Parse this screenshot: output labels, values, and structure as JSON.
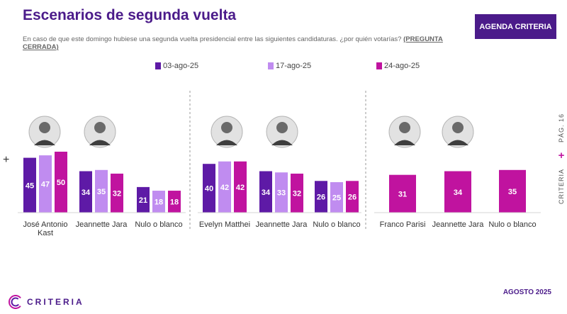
{
  "header": {
    "title": "Escenarios de segunda vuelta",
    "subtitle": "En caso de que este domingo hubiese una segunda vuelta presidencial entre las siguientes candidaturas. ¿por quién votarías?",
    "subtitle_note": "(PREGUNTA CERRADA)",
    "badge": "AGENDA CRITERIA"
  },
  "side": {
    "page": "PÁG. 16",
    "brand": "CRITERIA"
  },
  "footer": {
    "date": "AGOSTO 2025",
    "logo_text": "CRITERIA"
  },
  "colors": {
    "purple_dark": "#5e1aa6",
    "purple_light": "#c08cf0",
    "magenta": "#c0139f",
    "title": "#4b1b8a"
  },
  "chart_data": {
    "type": "bar",
    "legend": [
      "03-ago-25",
      "17-ago-25",
      "24-ago-25"
    ],
    "series_colors": [
      "#5e1aa6",
      "#c08cf0",
      "#c0139f"
    ],
    "ylim": [
      0,
      60
    ],
    "scenarios": [
      {
        "categories": [
          "José Antonio Kast",
          "Jeannette Jara",
          "Nulo o blanco"
        ],
        "series": [
          {
            "name": "03-ago-25",
            "values": [
              45,
              34,
              21
            ]
          },
          {
            "name": "17-ago-25",
            "values": [
              47,
              35,
              18
            ]
          },
          {
            "name": "24-ago-25",
            "values": [
              50,
              32,
              18
            ]
          }
        ]
      },
      {
        "categories": [
          "Evelyn Matthei",
          "Jeannette Jara",
          "Nulo o blanco"
        ],
        "series": [
          {
            "name": "03-ago-25",
            "values": [
              40,
              34,
              26
            ]
          },
          {
            "name": "17-ago-25",
            "values": [
              42,
              33,
              25
            ]
          },
          {
            "name": "24-ago-25",
            "values": [
              42,
              32,
              26
            ]
          }
        ]
      },
      {
        "categories": [
          "Franco Parisi",
          "Jeannette Jara",
          "Nulo o blanco"
        ],
        "series": [
          {
            "name": "24-ago-25",
            "values": [
              31,
              34,
              35
            ]
          }
        ]
      }
    ]
  }
}
